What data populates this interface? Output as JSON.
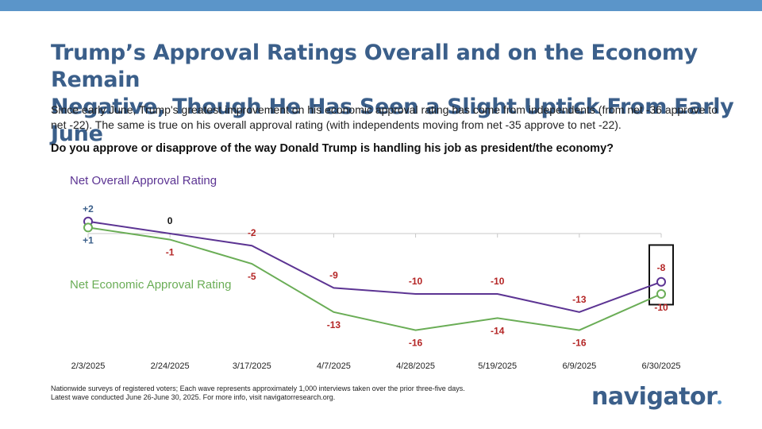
{
  "header": {
    "title_line1": "Trump’s Approval Ratings Overall and on the Economy Remain",
    "title_line2": "Negative, Though He Has Seen a Slight Uptick From Early June",
    "subtitle": "Since early June, Trump's greatest improvement on his economic approval rating has come from independents (from net -36 approve to net -22). The same is true on his overall approval rating (with independents moving from net -35 approve to net -22).",
    "question": "Do you approve or disapprove of the way Donald Trump is handling his job as president/the economy?"
  },
  "footer": {
    "note_line1": "Nationwide surveys of registered voters; Each wave represents approximately 1,000 interviews taken over the prior three-five days.",
    "note_line2": "Latest wave conducted June 26-June 30, 2025. For more info, visit navigatorresearch.org.",
    "logo": "navigator"
  },
  "colors": {
    "overall": "#5c3493",
    "economic": "#6aad56",
    "positive_label": "#3b5f8a",
    "negative_label": "#b42525",
    "zero_label": "#111111",
    "title": "#3b5f8a"
  },
  "chart_data": {
    "type": "line",
    "x": [
      "2/3/2025",
      "2/24/2025",
      "3/17/2025",
      "4/7/2025",
      "4/28/2025",
      "5/19/2025",
      "6/9/2025",
      "6/30/2025"
    ],
    "series": [
      {
        "name": "Net Overall Approval Rating",
        "values": [
          2,
          0,
          -2,
          -9,
          -10,
          -10,
          -13,
          -8
        ]
      },
      {
        "name": "Net Economic Approval Rating",
        "values": [
          1,
          -1,
          -5,
          -13,
          -16,
          -14,
          -16,
          -10
        ]
      }
    ],
    "value_labels": {
      "overall": [
        "+2",
        "0",
        "-2",
        "-9",
        "-10",
        "-10",
        "-13",
        "-8"
      ],
      "economic": [
        "+1",
        "-1",
        "-5",
        "-13",
        "-16",
        "-14",
        "-16",
        "-10"
      ]
    },
    "ylim": [
      -22,
      5
    ],
    "grid": false,
    "highlight": "6/30/2025"
  }
}
